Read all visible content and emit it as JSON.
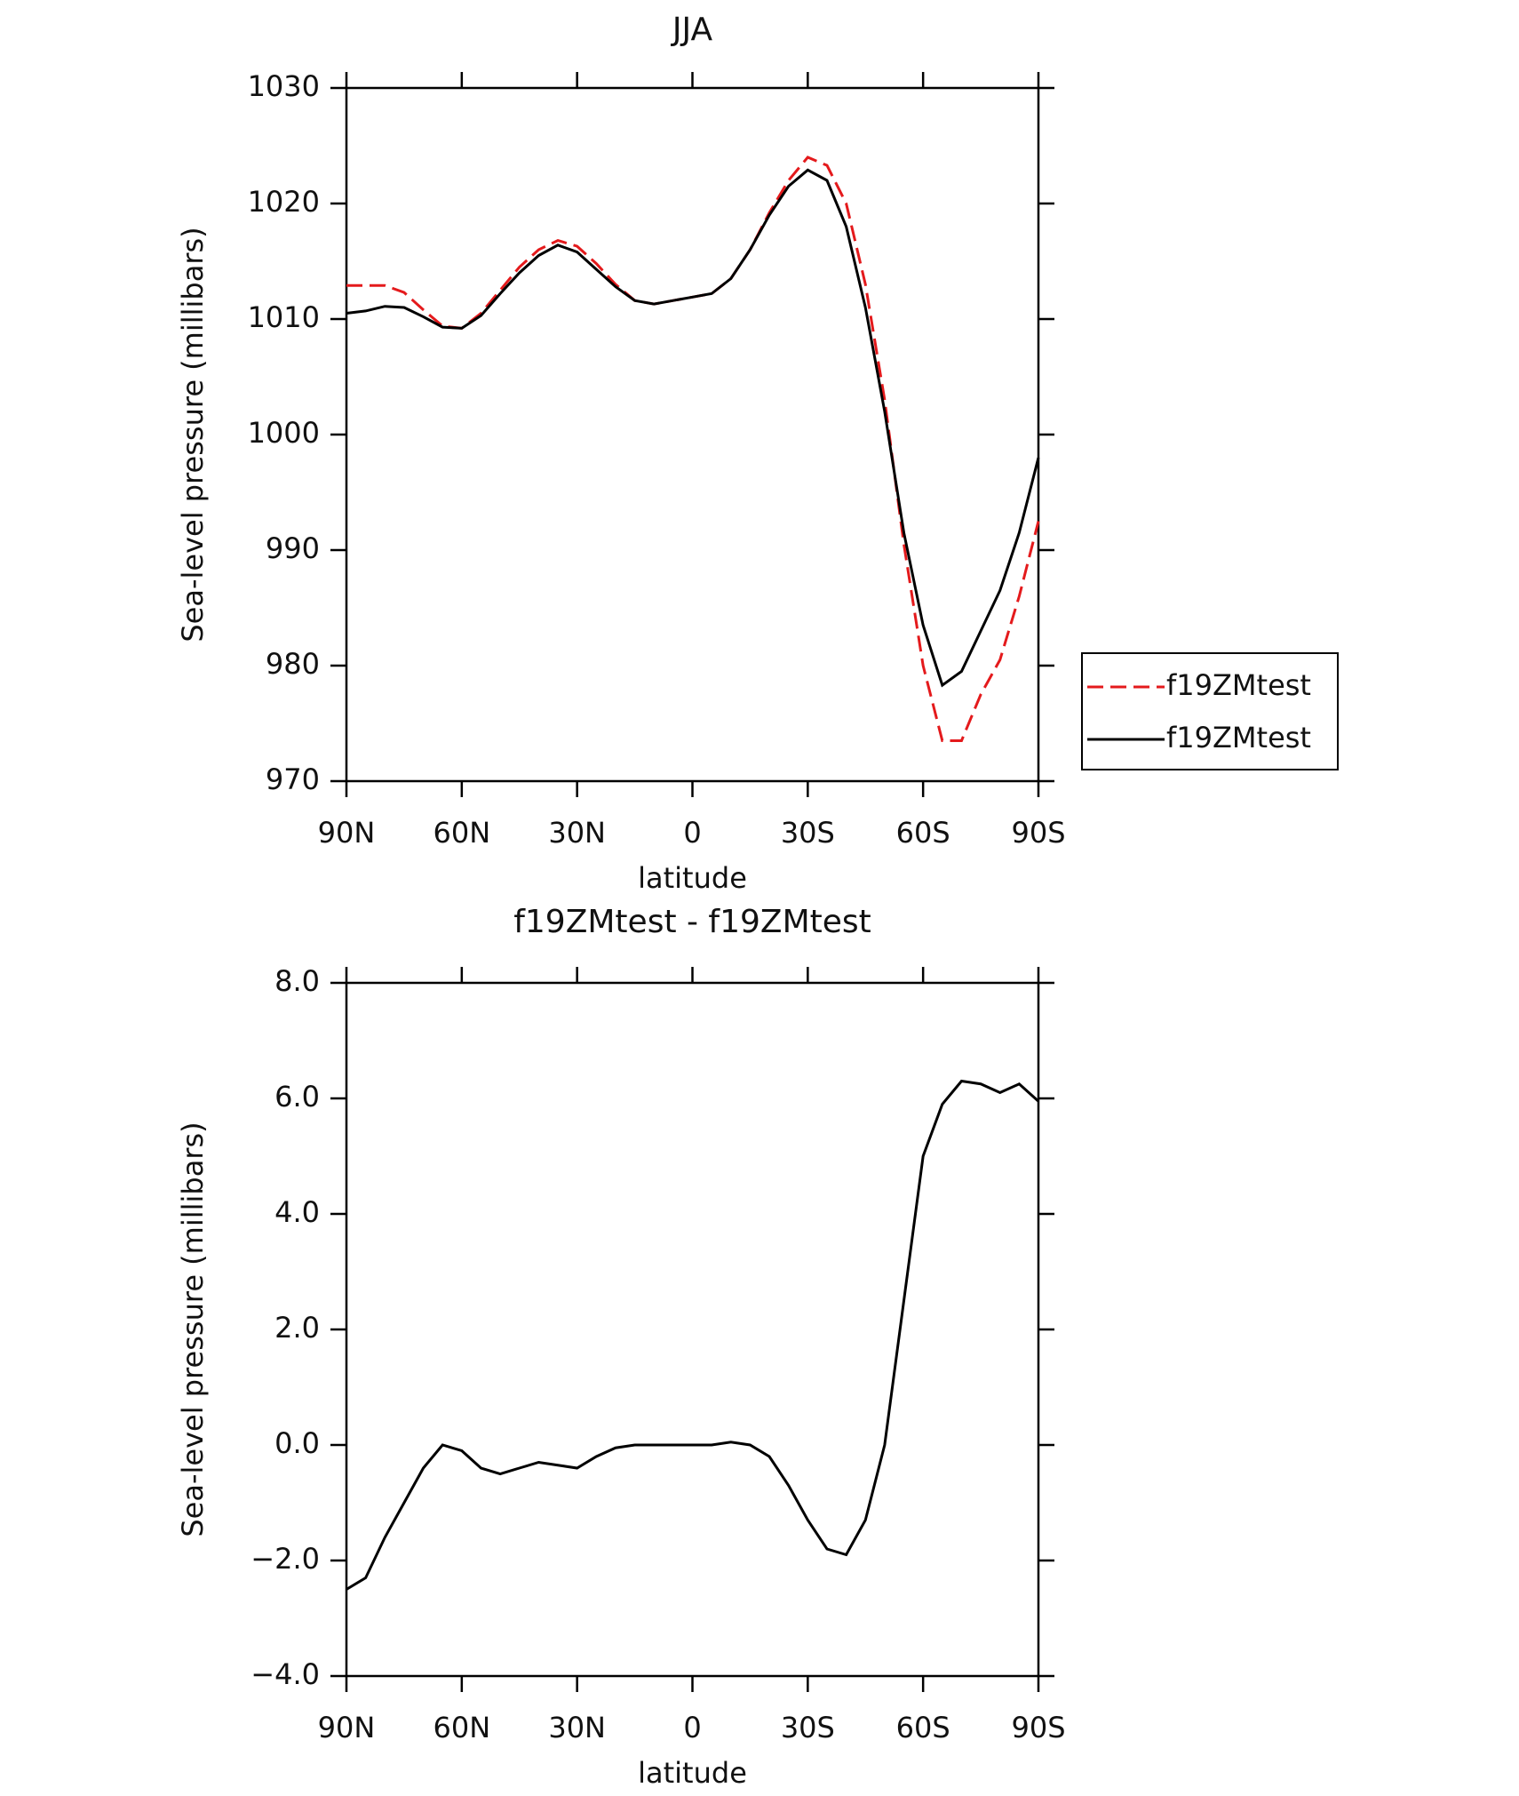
{
  "chart_data": [
    {
      "type": "line",
      "title": "JJA",
      "xlabel": "latitude",
      "ylabel": "Sea-level pressure (millibars)",
      "x": [
        90,
        85,
        80,
        75,
        70,
        65,
        60,
        55,
        50,
        45,
        40,
        35,
        30,
        25,
        20,
        15,
        10,
        5,
        0,
        -5,
        -10,
        -15,
        -20,
        -25,
        -30,
        -35,
        -40,
        -45,
        -50,
        -55,
        -60,
        -65,
        -70,
        -75,
        -80,
        -85,
        -90
      ],
      "series": [
        {
          "name": "f19ZMtest",
          "color": "#e41a1c",
          "dash": true,
          "values": [
            1012.9,
            1012.9,
            1012.9,
            1012.3,
            1010.8,
            1009.4,
            1009.2,
            1010.5,
            1012.5,
            1014.5,
            1016.0,
            1016.8,
            1016.3,
            1014.8,
            1013.0,
            1011.6,
            1011.3,
            1011.6,
            1011.9,
            1012.2,
            1013.5,
            1016.0,
            1019.2,
            1022.0,
            1024.0,
            1023.3,
            1020.0,
            1013.0,
            1003.0,
            990.5,
            980.0,
            973.5,
            973.5,
            977.5,
            980.5,
            986.0,
            992.5
          ]
        },
        {
          "name": "f19ZMtest",
          "color": "#000000",
          "dash": false,
          "values": [
            1010.5,
            1010.7,
            1011.1,
            1011.0,
            1010.2,
            1009.3,
            1009.2,
            1010.3,
            1012.2,
            1014.0,
            1015.5,
            1016.4,
            1015.8,
            1014.3,
            1012.8,
            1011.6,
            1011.3,
            1011.6,
            1011.9,
            1012.2,
            1013.5,
            1016.0,
            1019.0,
            1021.5,
            1022.9,
            1022.0,
            1018.0,
            1011.0,
            1002.0,
            991.5,
            983.5,
            978.3,
            979.5,
            983.0,
            986.5,
            991.5,
            998.0
          ]
        }
      ],
      "xlim": [
        90,
        -90
      ],
      "xticks": [
        {
          "value": 90,
          "label": "90N"
        },
        {
          "value": 60,
          "label": "60N"
        },
        {
          "value": 30,
          "label": "30N"
        },
        0,
        {
          "value": -30,
          "label": "30S"
        },
        {
          "value": -60,
          "label": "60S"
        },
        {
          "value": -90,
          "label": "90S"
        }
      ],
      "ylim": [
        970,
        1030
      ],
      "yticks": [
        970,
        980,
        990,
        1000,
        1010,
        1020,
        1030
      ],
      "legend": "right"
    },
    {
      "type": "line",
      "title": "f19ZMtest - f19ZMtest",
      "xlabel": "latitude",
      "ylabel": "Sea-level pressure (millibars)",
      "x": [
        90,
        85,
        80,
        75,
        70,
        65,
        60,
        55,
        50,
        45,
        40,
        35,
        30,
        25,
        20,
        15,
        10,
        5,
        0,
        -5,
        -10,
        -15,
        -20,
        -25,
        -30,
        -35,
        -40,
        -45,
        -50,
        -55,
        -60,
        -65,
        -70,
        -75,
        -80,
        -85,
        -90
      ],
      "series": [
        {
          "color": "#000000",
          "dash": false,
          "values": [
            -2.5,
            -2.3,
            -1.6,
            -1.0,
            -0.4,
            0.0,
            -0.1,
            -0.4,
            -0.5,
            -0.4,
            -0.3,
            -0.35,
            -0.4,
            -0.2,
            -0.05,
            0.0,
            0.0,
            0.0,
            0.0,
            0.0,
            0.05,
            0.0,
            -0.2,
            -0.7,
            -1.3,
            -1.8,
            -1.9,
            -1.3,
            0.0,
            2.5,
            5.0,
            5.9,
            6.3,
            6.25,
            6.1,
            6.25,
            5.95
          ]
        }
      ],
      "xlim": [
        90,
        -90
      ],
      "xticks": [
        {
          "value": 90,
          "label": "90N"
        },
        {
          "value": 60,
          "label": "60N"
        },
        {
          "value": 30,
          "label": "30N"
        },
        0,
        {
          "value": -30,
          "label": "30S"
        },
        {
          "value": -60,
          "label": "60S"
        },
        {
          "value": -90,
          "label": "90S"
        }
      ],
      "ylim": [
        -4,
        8
      ],
      "yticks": [
        {
          "value": -4,
          "label": "−4.0"
        },
        {
          "value": -2,
          "label": "−2.0"
        },
        {
          "value": 0,
          "label": "0.0"
        },
        {
          "value": 2,
          "label": "2.0"
        },
        {
          "value": 4,
          "label": "4.0"
        },
        {
          "value": 6,
          "label": "6.0"
        },
        {
          "value": 8,
          "label": "8.0"
        }
      ]
    }
  ]
}
